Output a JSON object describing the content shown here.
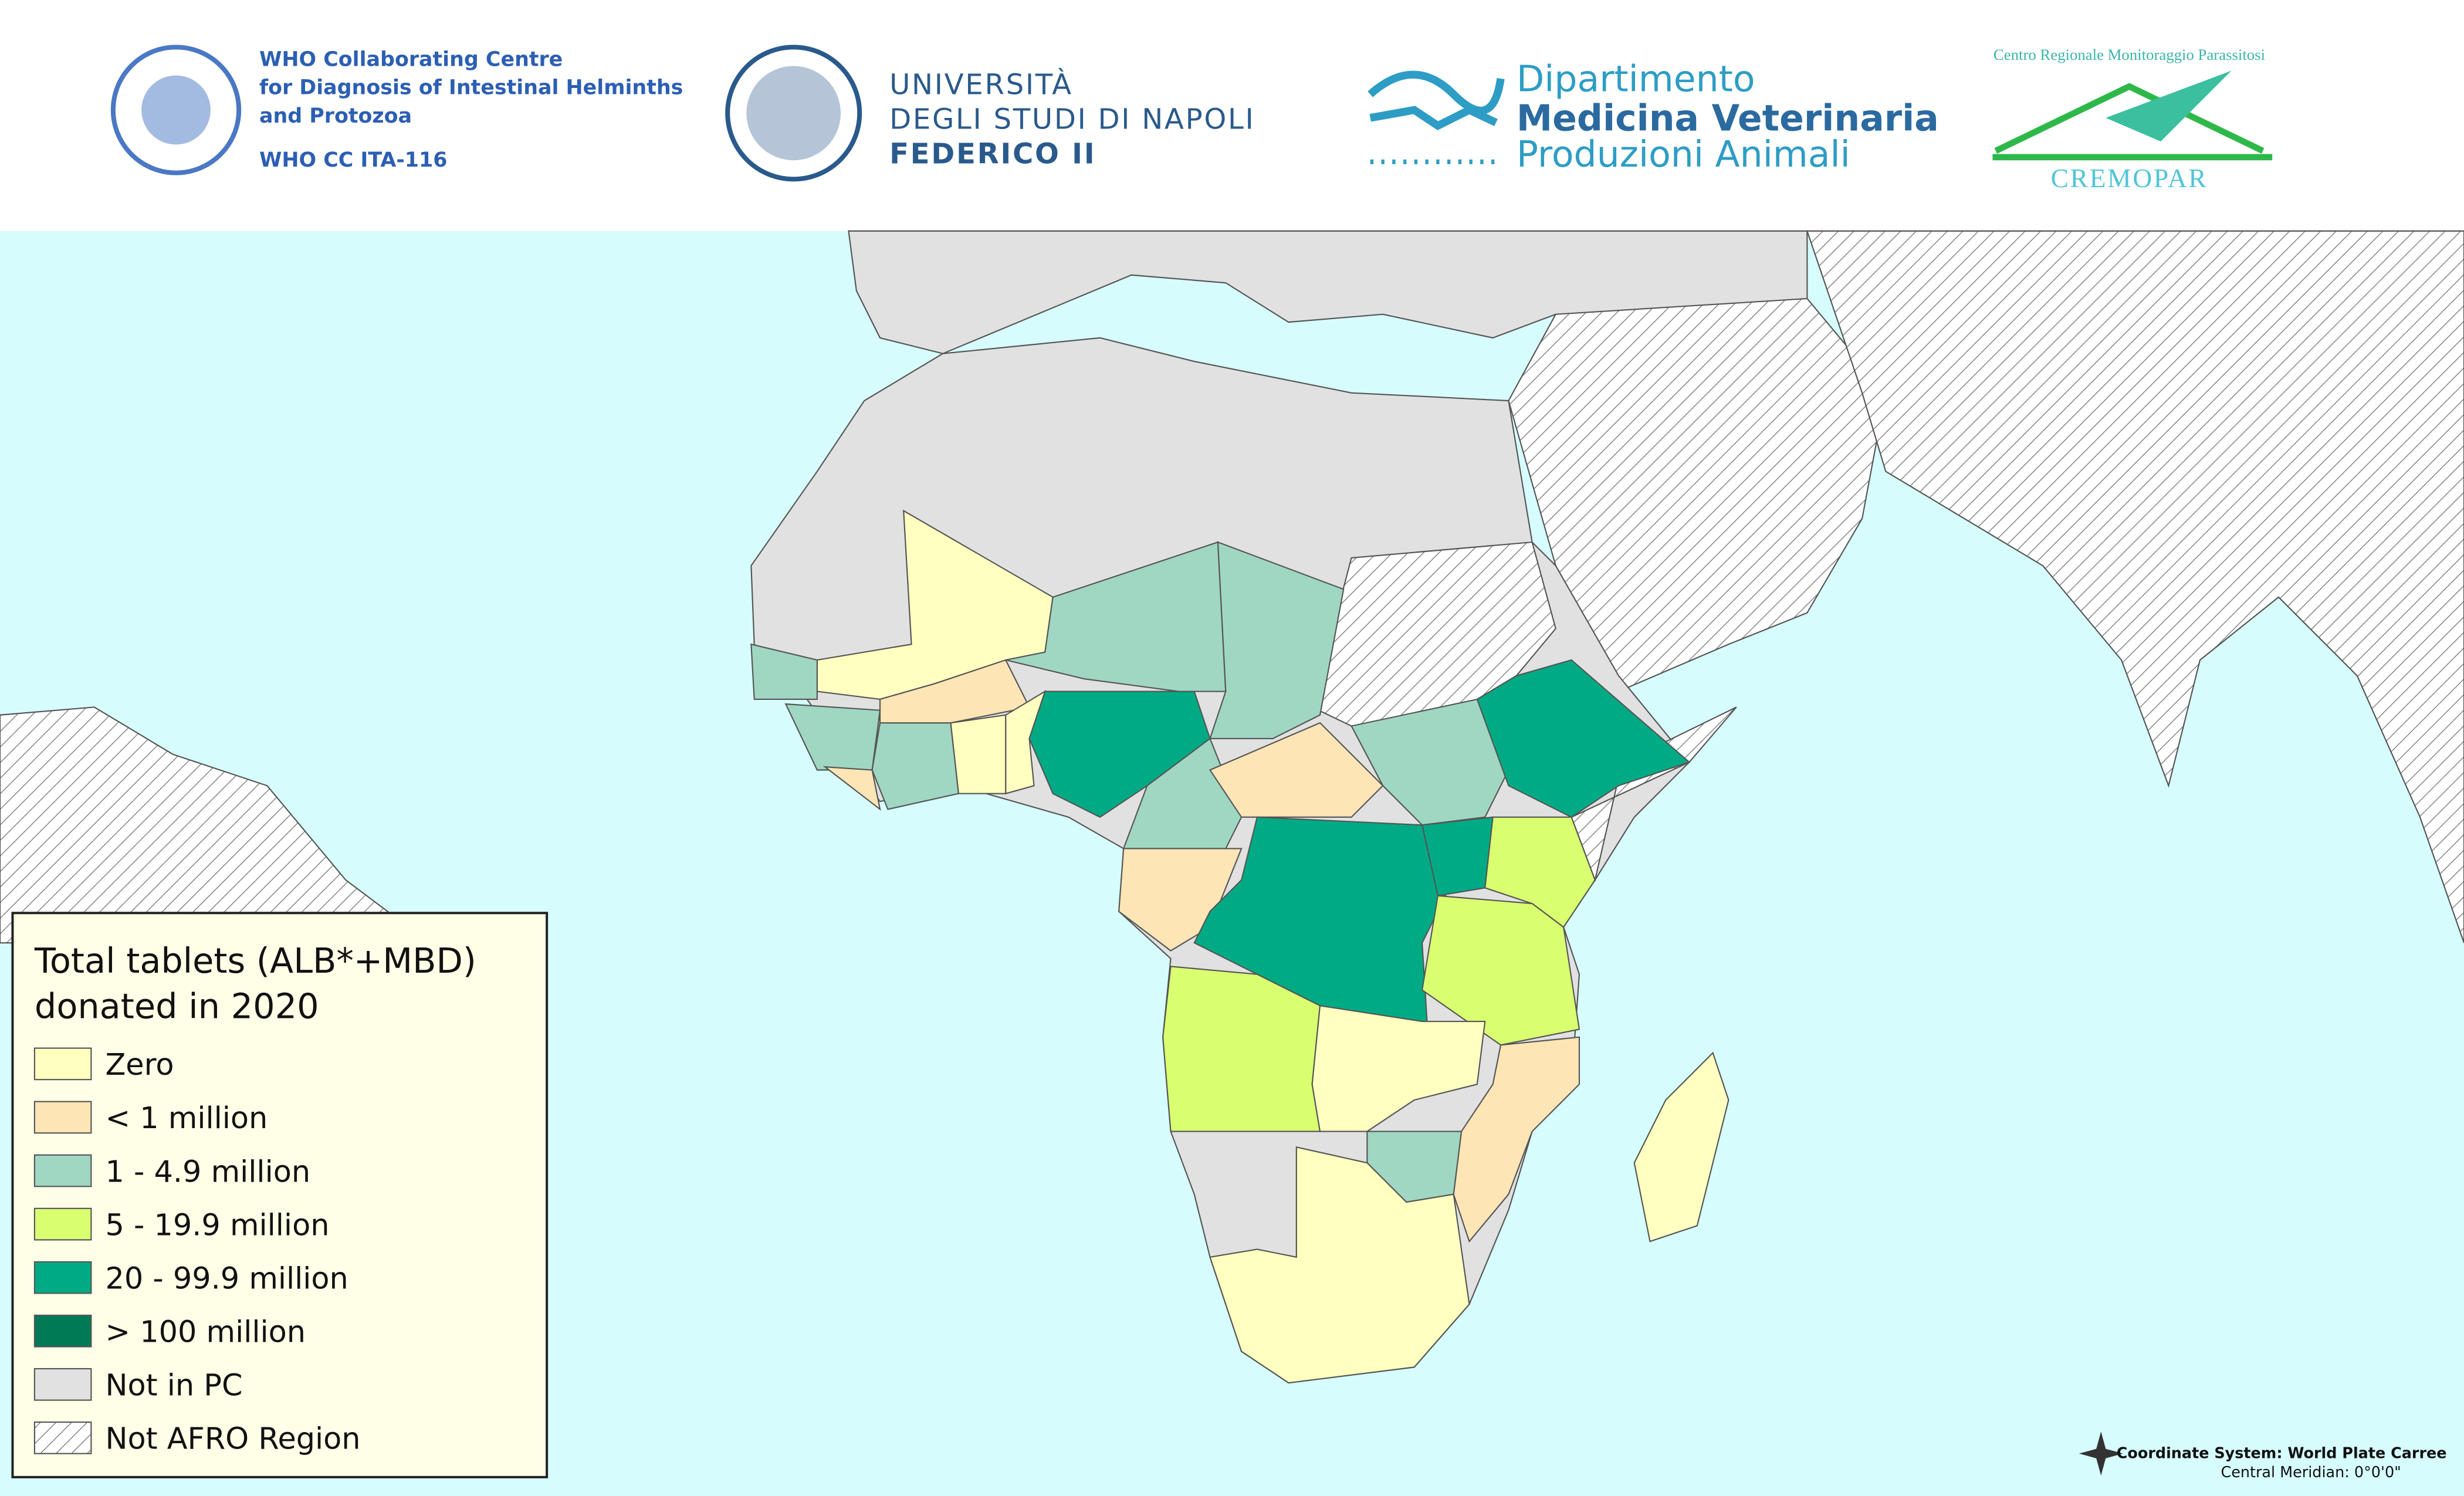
{
  "header": {
    "who": [
      "WHO Collaborating Centre",
      "for Diagnosis of Intestinal Helminths",
      "and Protozoa",
      "WHO CC ITA-116"
    ],
    "university": [
      "UNIVERSITÀ",
      "DEGLI STUDI DI NAPOLI",
      "FEDERICO II"
    ],
    "department": [
      "Dipartimento",
      "Medicina Veterinaria",
      "Produzioni Animali"
    ],
    "cremopar": [
      "Centro Regionale Monitoraggio Parassitosi",
      "CREMOPAR"
    ]
  },
  "legend": {
    "title": [
      "Total tablets (ALB*+MBD)",
      "donated in 2020"
    ],
    "items": [
      {
        "label": "Zero",
        "color": "#ffffc0"
      },
      {
        "label": "< 1 million",
        "color": "#fde5b5"
      },
      {
        "label": "1 - 4.9 million",
        "color": "#9fd7c2"
      },
      {
        "label": "5 - 19.9 million",
        "color": "#d9ff70"
      },
      {
        "label": "20 - 99.9 million",
        "color": "#00aa84"
      },
      {
        "label": "> 100 million",
        "color": "#007a55"
      },
      {
        "label": "Not in PC",
        "color": "#e1e1e1"
      },
      {
        "label": "Not AFRO Region",
        "color": "#ffffff",
        "hatch": true
      }
    ]
  },
  "footer": [
    "Coordinate System: World Plate Carree",
    "Central Meridian: 0°0'0\""
  ]
}
